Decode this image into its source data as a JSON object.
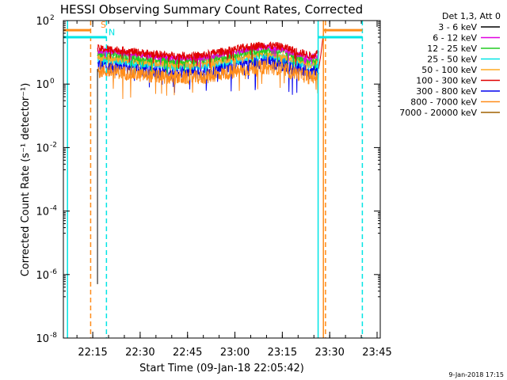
{
  "chart_data": {
    "type": "line",
    "title": "HESSI Observing Summary Count Rates, Corrected",
    "xlabel": "Start Time (09-Jan-18 22:05:42)",
    "ylabel": "Corrected Count Rate (s⁻¹ detector⁻¹)",
    "x_start": "22:05:42",
    "xlim": [
      "22:05:42",
      "23:46:00"
    ],
    "x_ticks": [
      "22:15",
      "22:30",
      "22:45",
      "23:00",
      "23:15",
      "23:30",
      "23:45"
    ],
    "y_scale": "log",
    "ylim": [
      1e-08,
      100
    ],
    "y_ticks": [
      {
        "value": 100,
        "mantissa": "10",
        "exp": "2"
      },
      {
        "value": 1,
        "mantissa": "10",
        "exp": "0"
      },
      {
        "value": 0.01,
        "mantissa": "10",
        "exp": "-2"
      },
      {
        "value": 0.0001,
        "mantissa": "10",
        "exp": "-4"
      },
      {
        "value": 1e-06,
        "mantissa": "10",
        "exp": "-6"
      },
      {
        "value": 1e-08,
        "mantissa": "10",
        "exp": "-8"
      }
    ],
    "legend_title": "Det 1,3, Att 0",
    "legend_position": "outside-right",
    "series": [
      {
        "name": "3 - 6 keV",
        "color": "#000000"
      },
      {
        "name": "6 - 12 keV",
        "color": "#e000e0"
      },
      {
        "name": "12 - 25 keV",
        "color": "#22cc22"
      },
      {
        "name": "25 - 50 keV",
        "color": "#00e5e5"
      },
      {
        "name": "50 - 100 keV",
        "color": "#ffaa22"
      },
      {
        "name": "100 - 300 keV",
        "color": "#e00000"
      },
      {
        "name": "300 - 800 keV",
        "color": "#0000ee"
      },
      {
        "name": "800 - 7000 keV",
        "color": "#ff8c1a"
      },
      {
        "name": "7000 - 20000 keV",
        "color": "#a06000"
      }
    ],
    "profile": {
      "times": [
        "22:16:30",
        "22:22",
        "22:30",
        "22:40",
        "22:50",
        "23:00",
        "23:08",
        "23:14",
        "23:20",
        "23:24",
        "23:26:30"
      ],
      "factors": [
        1.0,
        0.95,
        0.75,
        0.6,
        0.62,
        0.95,
        1.3,
        1.2,
        0.8,
        0.6,
        0.75
      ]
    },
    "data_series": [
      {
        "series": "300 - 800 keV",
        "base": 4.0,
        "noise": 0.5,
        "start": "22:16:30",
        "end": "23:26:30"
      },
      {
        "series": "25 - 50 keV",
        "base": 6.0,
        "noise": 0.25,
        "start": "22:16:30",
        "end": "23:26:30"
      },
      {
        "series": "800 - 7000 keV",
        "base": 2.6,
        "noise": 0.45,
        "start": "22:16:30",
        "end": "23:26:30"
      },
      {
        "series": "50 - 100 keV",
        "base": 7.0,
        "noise": 0.25,
        "start": "22:16:30",
        "end": "23:26:30"
      },
      {
        "series": "12 - 25 keV",
        "base": 9.0,
        "noise": 0.25,
        "start": "22:16:30",
        "end": "23:26:30"
      },
      {
        "series": "6 - 12 keV",
        "base": 11.0,
        "noise": 0.2,
        "start": "22:16:30",
        "end": "23:26:30"
      },
      {
        "series": "100 - 300 keV",
        "base": 13.0,
        "noise": 0.25,
        "start": "22:16:30",
        "end": "23:26:30"
      }
    ],
    "markers": [
      {
        "type": "vline",
        "time": "22:07:00",
        "color": "#00e5e5",
        "style": "solid"
      },
      {
        "type": "vline",
        "time": "22:14:20",
        "color": "#ff8c1a",
        "style": "dashed"
      },
      {
        "type": "vline",
        "time": "22:19:20",
        "color": "#00e5e5",
        "style": "dashed"
      },
      {
        "type": "vline",
        "time": "23:26:20",
        "color": "#00e5e5",
        "style": "solid"
      },
      {
        "type": "vline",
        "time": "23:28:00",
        "color": "#ff8c1a",
        "style": "solid"
      },
      {
        "type": "vline",
        "time": "23:40:20",
        "color": "#00e5e5",
        "style": "dashed"
      },
      {
        "type": "vline",
        "time": "23:28:40",
        "color": "#ff8c1a",
        "style": "dashed"
      },
      {
        "type": "step",
        "from": "22:05:42",
        "to": "22:14:20",
        "level": 50,
        "color": "#ff8c1a"
      },
      {
        "type": "step",
        "from": "22:05:42",
        "to": "22:19:20",
        "level": 30,
        "color": "#00e5e5"
      },
      {
        "type": "step",
        "from": "23:28:00",
        "to": "23:40:20",
        "level": 50,
        "color": "#ff8c1a"
      },
      {
        "type": "step",
        "from": "23:26:20",
        "to": "23:40:20",
        "level": 30,
        "color": "#00e5e5"
      }
    ],
    "annotations": [
      {
        "text": "S",
        "time": "22:17:30",
        "value": 60,
        "color": "#ff8c1a"
      },
      {
        "text": "N",
        "time": "22:20:00",
        "value": 35,
        "color": "#00e5e5"
      }
    ]
  },
  "timestamp": "9-Jan-2018 17:15"
}
